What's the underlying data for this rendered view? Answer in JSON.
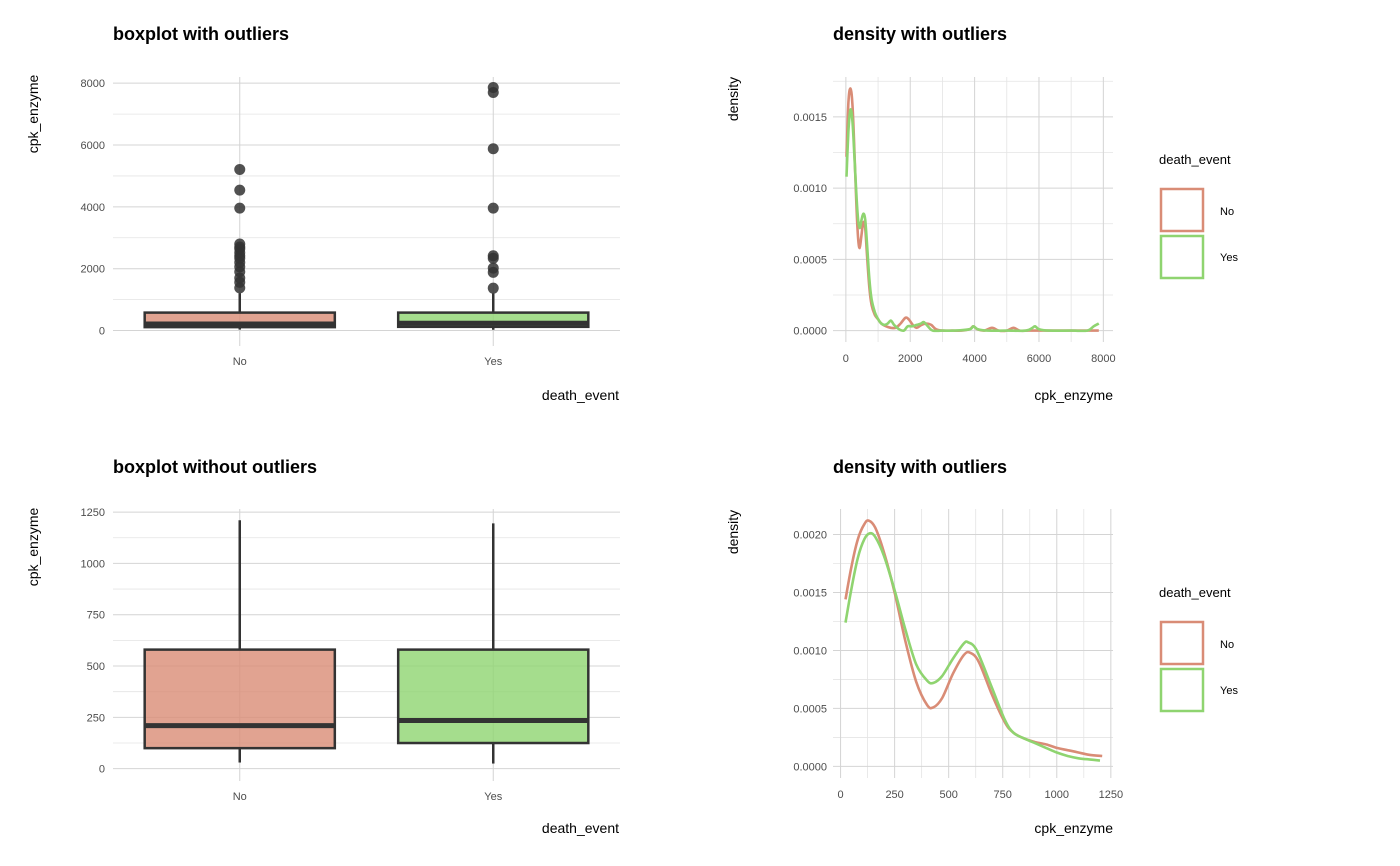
{
  "colors": {
    "no": "#d98c76",
    "yes": "#8fd470",
    "box_line": "#333333",
    "outlier": "#333333"
  },
  "chart_data": [
    {
      "type": "boxplot",
      "title": "boxplot with outliers",
      "xlabel": "death_event",
      "ylabel": "cpk_enzyme",
      "categories": [
        "No",
        "Yes"
      ],
      "ylim": [
        -500,
        8200
      ],
      "yticks": [
        0,
        2000,
        4000,
        6000,
        8000
      ],
      "ytick_labels": [
        "0",
        "2000",
        "4000",
        "6000",
        "8000"
      ],
      "boxes": [
        {
          "q1": 110,
          "median": 210,
          "q3": 580,
          "whisker_low": 30,
          "whisker_high": 1210,
          "outliers": [
            1380,
            1560,
            1700,
            1900,
            2060,
            2200,
            2340,
            2420,
            2520,
            2640,
            2700,
            2800,
            3960,
            4540,
            5210
          ]
        },
        {
          "q1": 120,
          "median": 235,
          "q3": 580,
          "whisker_low": 25,
          "whisker_high": 1200,
          "outliers": [
            1370,
            1880,
            2020,
            2340,
            2420,
            3960,
            5880,
            7700,
            7860
          ]
        }
      ]
    },
    {
      "type": "line",
      "title": "density with outliers",
      "xlabel": "cpk_enzyme",
      "ylabel": "density",
      "xlim": [
        -400,
        8300
      ],
      "ylim": [
        -8e-05,
        0.00178
      ],
      "xticks": [
        0,
        2000,
        4000,
        6000,
        8000
      ],
      "xtick_labels": [
        "0",
        "2000",
        "4000",
        "6000",
        "8000"
      ],
      "yticks": [
        0,
        0.0005,
        0.001,
        0.0015
      ],
      "ytick_labels": [
        "0.0000",
        "0.0005",
        "0.0010",
        "0.0015"
      ],
      "legend_title": "death_event",
      "series": [
        {
          "name": "No",
          "points": [
            [
              20,
              0.00122
            ],
            [
              80,
              0.0016
            ],
            [
              140,
              0.0017
            ],
            [
              200,
              0.0016
            ],
            [
              260,
              0.0013
            ],
            [
              320,
              0.00092
            ],
            [
              380,
              0.00065
            ],
            [
              430,
              0.00058
            ],
            [
              480,
              0.00066
            ],
            [
              540,
              0.00076
            ],
            [
              600,
              0.00072
            ],
            [
              660,
              0.00052
            ],
            [
              730,
              0.0003
            ],
            [
              800,
              0.00018
            ],
            [
              900,
              0.00011
            ],
            [
              1000,
              8e-05
            ],
            [
              1100,
              5e-05
            ],
            [
              1250,
              3e-05
            ],
            [
              1400,
              2e-05
            ],
            [
              1550,
              2e-05
            ],
            [
              1700,
              5e-05
            ],
            [
              1850,
              9e-05
            ],
            [
              1950,
              8e-05
            ],
            [
              2080,
              4e-05
            ],
            [
              2200,
              2e-05
            ],
            [
              2350,
              4e-05
            ],
            [
              2500,
              5e-05
            ],
            [
              2650,
              4e-05
            ],
            [
              2800,
              1e-05
            ],
            [
              3000,
              0.0
            ],
            [
              3300,
              0.0
            ],
            [
              3600,
              0.0
            ],
            [
              3850,
              1e-05
            ],
            [
              3960,
              3e-05
            ],
            [
              4080,
              1e-05
            ],
            [
              4300,
              0.0
            ],
            [
              4540,
              2e-05
            ],
            [
              4750,
              0.0
            ],
            [
              5000,
              0.0
            ],
            [
              5210,
              2e-05
            ],
            [
              5400,
              0.0
            ],
            [
              5700,
              0.0
            ],
            [
              6200,
              0.0
            ],
            [
              7000,
              0.0
            ],
            [
              7860,
              0.0
            ]
          ]
        },
        {
          "name": "Yes",
          "points": [
            [
              20,
              0.00108
            ],
            [
              80,
              0.0014
            ],
            [
              140,
              0.00155
            ],
            [
              200,
              0.00148
            ],
            [
              260,
              0.00125
            ],
            [
              320,
              0.00098
            ],
            [
              380,
              0.00078
            ],
            [
              430,
              0.00072
            ],
            [
              480,
              0.00077
            ],
            [
              540,
              0.00082
            ],
            [
              600,
              0.00078
            ],
            [
              660,
              0.0006
            ],
            [
              730,
              0.00036
            ],
            [
              800,
              0.00022
            ],
            [
              900,
              0.00013
            ],
            [
              1000,
              8e-05
            ],
            [
              1100,
              5e-05
            ],
            [
              1200,
              4e-05
            ],
            [
              1300,
              5e-05
            ],
            [
              1400,
              7e-05
            ],
            [
              1500,
              4e-05
            ],
            [
              1650,
              1e-05
            ],
            [
              1800,
              0.0
            ],
            [
              1920,
              3e-05
            ],
            [
              2050,
              3e-05
            ],
            [
              2200,
              4e-05
            ],
            [
              2340,
              5e-05
            ],
            [
              2420,
              6e-05
            ],
            [
              2550,
              3e-05
            ],
            [
              2700,
              0.0
            ],
            [
              3000,
              0.0
            ],
            [
              3400,
              0.0
            ],
            [
              3850,
              1e-05
            ],
            [
              3960,
              3e-05
            ],
            [
              4100,
              1e-05
            ],
            [
              4400,
              0.0
            ],
            [
              5000,
              0.0
            ],
            [
              5600,
              0.0
            ],
            [
              5800,
              2e-05
            ],
            [
              5880,
              3e-05
            ],
            [
              6000,
              1e-05
            ],
            [
              6300,
              0.0
            ],
            [
              7000,
              0.0
            ],
            [
              7500,
              0.0
            ],
            [
              7700,
              3e-05
            ],
            [
              7860,
              5e-05
            ]
          ]
        }
      ]
    },
    {
      "type": "boxplot",
      "title": "boxplot without outliers",
      "xlabel": "death_event",
      "ylabel": "cpk_enzyme",
      "categories": [
        "No",
        "Yes"
      ],
      "ylim": [
        -60,
        1265
      ],
      "yticks": [
        0,
        250,
        500,
        750,
        1000,
        1250
      ],
      "ytick_labels": [
        "0",
        "250",
        "500",
        "750",
        "1000",
        "1250"
      ],
      "boxes": [
        {
          "q1": 100,
          "median": 210,
          "q3": 580,
          "whisker_low": 30,
          "whisker_high": 1210,
          "outliers": []
        },
        {
          "q1": 125,
          "median": 235,
          "q3": 580,
          "whisker_low": 25,
          "whisker_high": 1195,
          "outliers": []
        }
      ]
    },
    {
      "type": "line",
      "title": "density with outliers",
      "xlabel": "cpk_enzyme",
      "ylabel": "density",
      "xlim": [
        -35,
        1260
      ],
      "ylim": [
        -0.0001,
        0.00222
      ],
      "xticks": [
        0,
        250,
        500,
        750,
        1000,
        1250
      ],
      "xtick_labels": [
        "0",
        "250",
        "500",
        "750",
        "1000",
        "1250"
      ],
      "yticks": [
        0,
        0.0005,
        0.001,
        0.0015,
        0.002
      ],
      "ytick_labels": [
        "0.0000",
        "0.0005",
        "0.0010",
        "0.0015",
        "0.0020"
      ],
      "legend_title": "death_event",
      "series": [
        {
          "name": "No",
          "points": [
            [
              23,
              0.00144
            ],
            [
              50,
              0.00172
            ],
            [
              80,
              0.00196
            ],
            [
              110,
              0.00209
            ],
            [
              130,
              0.00212
            ],
            [
              160,
              0.00206
            ],
            [
              200,
              0.00185
            ],
            [
              250,
              0.0015
            ],
            [
              300,
              0.00108
            ],
            [
              350,
              0.00073
            ],
            [
              400,
              0.00053
            ],
            [
              430,
              0.00051
            ],
            [
              470,
              0.00059
            ],
            [
              520,
              0.0008
            ],
            [
              570,
              0.00096
            ],
            [
              600,
              0.00098
            ],
            [
              640,
              0.0009
            ],
            [
              700,
              0.00062
            ],
            [
              760,
              0.00038
            ],
            [
              800,
              0.00029
            ],
            [
              850,
              0.00024
            ],
            [
              900,
              0.00021
            ],
            [
              950,
              0.00019
            ],
            [
              1000,
              0.00016
            ],
            [
              1050,
              0.00014
            ],
            [
              1100,
              0.00012
            ],
            [
              1150,
              0.0001
            ],
            [
              1210,
              9e-05
            ]
          ]
        },
        {
          "name": "Yes",
          "points": [
            [
              23,
              0.00124
            ],
            [
              50,
              0.00153
            ],
            [
              80,
              0.0018
            ],
            [
              110,
              0.00196
            ],
            [
              135,
              0.00201
            ],
            [
              160,
              0.00198
            ],
            [
              200,
              0.00182
            ],
            [
              250,
              0.00152
            ],
            [
              300,
              0.00118
            ],
            [
              350,
              0.00088
            ],
            [
              400,
              0.00074
            ],
            [
              430,
              0.00072
            ],
            [
              470,
              0.00078
            ],
            [
              520,
              0.00093
            ],
            [
              570,
              0.00106
            ],
            [
              590,
              0.00107
            ],
            [
              630,
              0.001
            ],
            [
              700,
              0.00068
            ],
            [
              760,
              0.0004
            ],
            [
              800,
              0.00029
            ],
            [
              850,
              0.00024
            ],
            [
              900,
              0.0002
            ],
            [
              950,
              0.00016
            ],
            [
              1000,
              0.00012
            ],
            [
              1050,
              9e-05
            ],
            [
              1100,
              7e-05
            ],
            [
              1150,
              6e-05
            ],
            [
              1200,
              5e-05
            ]
          ]
        }
      ]
    }
  ]
}
